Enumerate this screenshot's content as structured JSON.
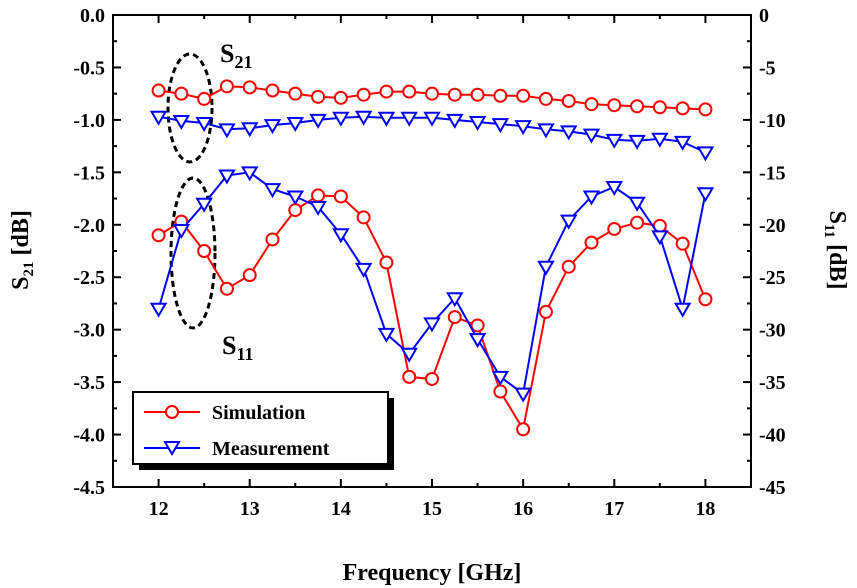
{
  "chart_data": {
    "type": "line",
    "title": "",
    "xlabel": "Frequency [GHz]",
    "ylabel_left": {
      "main": "S",
      "sub": "21",
      "unit": " [dB]"
    },
    "ylabel_right": {
      "main": "S",
      "sub": "11",
      "unit": " [dB]"
    },
    "xlim": [
      11.5,
      18.5
    ],
    "ylim_left": [
      -4.5,
      0.0
    ],
    "ylim_right": [
      -45,
      0
    ],
    "xticks": [
      12,
      13,
      14,
      15,
      16,
      17,
      18
    ],
    "yticks_left": [
      "0.0",
      "-0.5",
      "-1.0",
      "-1.5",
      "-2.0",
      "-2.5",
      "-3.0",
      "-3.5",
      "-4.0",
      "-4.5"
    ],
    "yticks_right": [
      "0",
      "-5",
      "-10",
      "-15",
      "-20",
      "-25",
      "-30",
      "-35",
      "-40",
      "-45"
    ],
    "x": [
      12.0,
      12.25,
      12.5,
      12.75,
      13.0,
      13.25,
      13.5,
      13.75,
      14.0,
      14.25,
      14.5,
      14.75,
      15.0,
      15.25,
      15.5,
      15.75,
      16.0,
      16.25,
      16.5,
      16.75,
      17.0,
      17.25,
      17.5,
      17.75,
      18.0
    ],
    "series": [
      {
        "name": "Simulation",
        "param": "S21",
        "axis": "left",
        "color": "#ff0000",
        "marker": "circle",
        "values": [
          -0.72,
          -0.75,
          -0.8,
          -0.68,
          -0.69,
          -0.72,
          -0.75,
          -0.78,
          -0.79,
          -0.76,
          -0.73,
          -0.73,
          -0.75,
          -0.76,
          -0.76,
          -0.77,
          -0.77,
          -0.8,
          -0.82,
          -0.85,
          -0.86,
          -0.87,
          -0.88,
          -0.89,
          -0.9
        ]
      },
      {
        "name": "Measurement",
        "param": "S21",
        "axis": "left",
        "color": "#0000ff",
        "marker": "triangle-down",
        "values": [
          -0.97,
          -1.01,
          -1.03,
          -1.09,
          -1.08,
          -1.05,
          -1.03,
          -1.0,
          -0.98,
          -0.97,
          -0.98,
          -0.98,
          -0.98,
          -1.0,
          -1.02,
          -1.04,
          -1.06,
          -1.09,
          -1.11,
          -1.14,
          -1.19,
          -1.2,
          -1.18,
          -1.21,
          -1.31
        ]
      },
      {
        "name": "Simulation",
        "param": "S11",
        "axis": "right",
        "color": "#ff0000",
        "marker": "circle",
        "values": [
          -21.0,
          -19.7,
          -22.5,
          -26.1,
          -24.8,
          -21.4,
          -18.6,
          -17.2,
          -17.3,
          -19.3,
          -23.6,
          -34.5,
          -34.7,
          -28.8,
          -29.6,
          -35.9,
          -39.5,
          -28.3,
          -24.0,
          -21.7,
          -20.4,
          -19.8,
          -20.1,
          -21.8,
          -27.1
        ]
      },
      {
        "name": "Measurement",
        "param": "S11",
        "axis": "right",
        "color": "#0000ff",
        "marker": "triangle-down",
        "values": [
          -28.0,
          -20.5,
          -18.0,
          -15.3,
          -15.0,
          -16.6,
          -17.3,
          -18.3,
          -20.9,
          -24.2,
          -30.4,
          -32.3,
          -29.4,
          -27.0,
          -30.9,
          -34.5,
          -36.1,
          -24.0,
          -19.6,
          -17.3,
          -16.4,
          -17.9,
          -21.1,
          -28.0,
          -17.0
        ]
      }
    ],
    "annotations": [
      {
        "main": "S",
        "sub": "21"
      },
      {
        "main": "S",
        "sub": "11"
      }
    ],
    "legend": {
      "position": "bottom-left",
      "entries": [
        "Simulation",
        "Measurement"
      ]
    },
    "grid": false
  }
}
